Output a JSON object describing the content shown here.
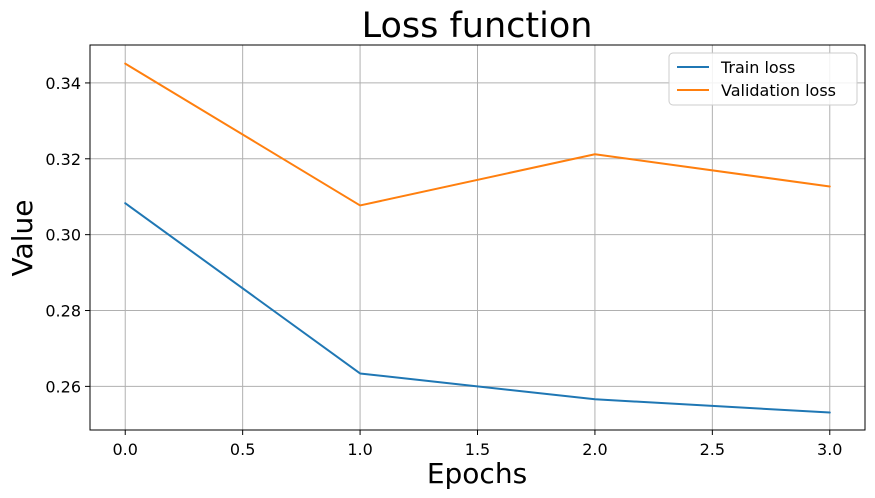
{
  "chart_data": {
    "type": "line",
    "title": "Loss function",
    "xlabel": "Epochs",
    "ylabel": "Value",
    "x": [
      0,
      1,
      2,
      3
    ],
    "xlim": [
      -0.15,
      3.15
    ],
    "ylim": [
      0.2485,
      0.35
    ],
    "xticks": [
      0.0,
      0.5,
      1.0,
      1.5,
      2.0,
      2.5,
      3.0
    ],
    "xtick_labels": [
      "0.0",
      "0.5",
      "1.0",
      "1.5",
      "2.0",
      "2.5",
      "3.0"
    ],
    "yticks": [
      0.26,
      0.28,
      0.3,
      0.32,
      0.34
    ],
    "ytick_labels": [
      "0.26",
      "0.28",
      "0.30",
      "0.32",
      "0.34"
    ],
    "grid": true,
    "legend_position": "top-right",
    "series": [
      {
        "name": "Train loss",
        "color": "#1f77b4",
        "values": [
          0.3083,
          0.2634,
          0.2566,
          0.2531
        ]
      },
      {
        "name": "Validation loss",
        "color": "#ff7f0e",
        "values": [
          0.3451,
          0.3077,
          0.3212,
          0.3127
        ]
      }
    ]
  }
}
